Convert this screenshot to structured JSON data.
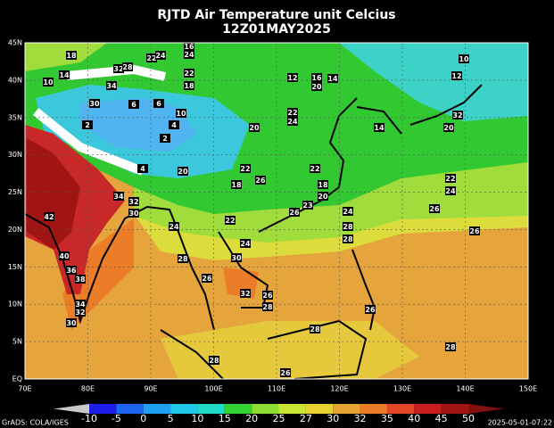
{
  "header": {
    "title": "RJTD Air Temperature unit Celcius",
    "subtitle": "12Z01MAY2025"
  },
  "lat_labels": [
    "45N",
    "40N",
    "35N",
    "30N",
    "25N",
    "20N",
    "15N",
    "10N",
    "5N",
    "EQ"
  ],
  "lon_labels": [
    "70E",
    "80E",
    "90E",
    "100E",
    "110E",
    "120E",
    "130E",
    "140E",
    "150E"
  ],
  "colorbar": {
    "labels": [
      "-10",
      "-5",
      "0",
      "5",
      "10",
      "15",
      "20",
      "25",
      "27",
      "30",
      "32",
      "35",
      "40",
      "45",
      "50"
    ],
    "colors": [
      "#c8c8c8",
      "#1e1eeb",
      "#1e64f0",
      "#1ea0f0",
      "#1ec8e6",
      "#1edcc8",
      "#32d232",
      "#8cdc32",
      "#c8e632",
      "#e6d232",
      "#e6a532",
      "#eb7d28",
      "#e64628",
      "#c81e1e",
      "#a01414",
      "#821010"
    ]
  },
  "footer": {
    "left": "GrADS: COLA/IGES",
    "right": "2025-05-01-07:22"
  },
  "contour_labels": [
    "18",
    "32",
    "28",
    "22",
    "24",
    "16",
    "24",
    "10",
    "12",
    "10",
    "14",
    "34",
    "22",
    "18",
    "12",
    "16",
    "20",
    "14",
    "30",
    "6",
    "6",
    "10",
    "22",
    "24",
    "32",
    "20",
    "14",
    "20",
    "2",
    "4",
    "2",
    "22",
    "4",
    "20",
    "26",
    "18",
    "22",
    "18",
    "20",
    "34",
    "32",
    "30",
    "22",
    "24",
    "23",
    "26",
    "24",
    "22",
    "24",
    "26",
    "26",
    "28",
    "28",
    "24",
    "28",
    "30",
    "40",
    "36",
    "38",
    "26",
    "32",
    "26",
    "28",
    "26",
    "34",
    "32",
    "30",
    "28",
    "28",
    "28",
    "26",
    "42"
  ]
}
